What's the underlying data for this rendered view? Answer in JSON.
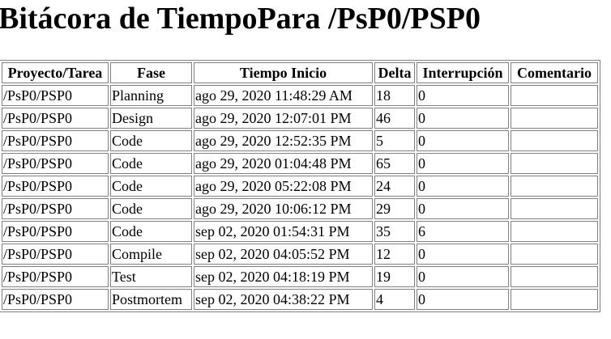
{
  "page": {
    "title": "Bitácora de TiempoPara /PsP0/PSP0"
  },
  "table": {
    "headers": {
      "proyecto": "Proyecto/Tarea",
      "fase": "Fase",
      "inicio": "Tiempo Inicio",
      "delta": "Delta",
      "interrupcion": "Interrupción",
      "comentario": "Comentario"
    },
    "rows": [
      {
        "proyecto": "/PsP0/PSP0",
        "fase": "Planning",
        "inicio": "ago 29, 2020 11:48:29 AM",
        "delta": "18",
        "interrupcion": "0",
        "comentario": ""
      },
      {
        "proyecto": "/PsP0/PSP0",
        "fase": "Design",
        "inicio": "ago 29, 2020 12:07:01 PM",
        "delta": "46",
        "interrupcion": "0",
        "comentario": ""
      },
      {
        "proyecto": "/PsP0/PSP0",
        "fase": "Code",
        "inicio": "ago 29, 2020 12:52:35 PM",
        "delta": "5",
        "interrupcion": "0",
        "comentario": ""
      },
      {
        "proyecto": "/PsP0/PSP0",
        "fase": "Code",
        "inicio": "ago 29, 2020 01:04:48 PM",
        "delta": "65",
        "interrupcion": "0",
        "comentario": ""
      },
      {
        "proyecto": "/PsP0/PSP0",
        "fase": "Code",
        "inicio": "ago 29, 2020 05:22:08 PM",
        "delta": "24",
        "interrupcion": "0",
        "comentario": ""
      },
      {
        "proyecto": "/PsP0/PSP0",
        "fase": "Code",
        "inicio": "ago 29, 2020 10:06:12 PM",
        "delta": "29",
        "interrupcion": "0",
        "comentario": ""
      },
      {
        "proyecto": "/PsP0/PSP0",
        "fase": "Code",
        "inicio": "sep 02, 2020 01:54:31 PM",
        "delta": "35",
        "interrupcion": "6",
        "comentario": ""
      },
      {
        "proyecto": "/PsP0/PSP0",
        "fase": "Compile",
        "inicio": "sep 02, 2020 04:05:52 PM",
        "delta": "12",
        "interrupcion": "0",
        "comentario": ""
      },
      {
        "proyecto": "/PsP0/PSP0",
        "fase": "Test",
        "inicio": "sep 02, 2020 04:18:19 PM",
        "delta": "19",
        "interrupcion": "0",
        "comentario": ""
      },
      {
        "proyecto": "/PsP0/PSP0",
        "fase": "Postmortem",
        "inicio": "sep 02, 2020 04:38:22 PM",
        "delta": "4",
        "interrupcion": "0",
        "comentario": ""
      }
    ]
  }
}
